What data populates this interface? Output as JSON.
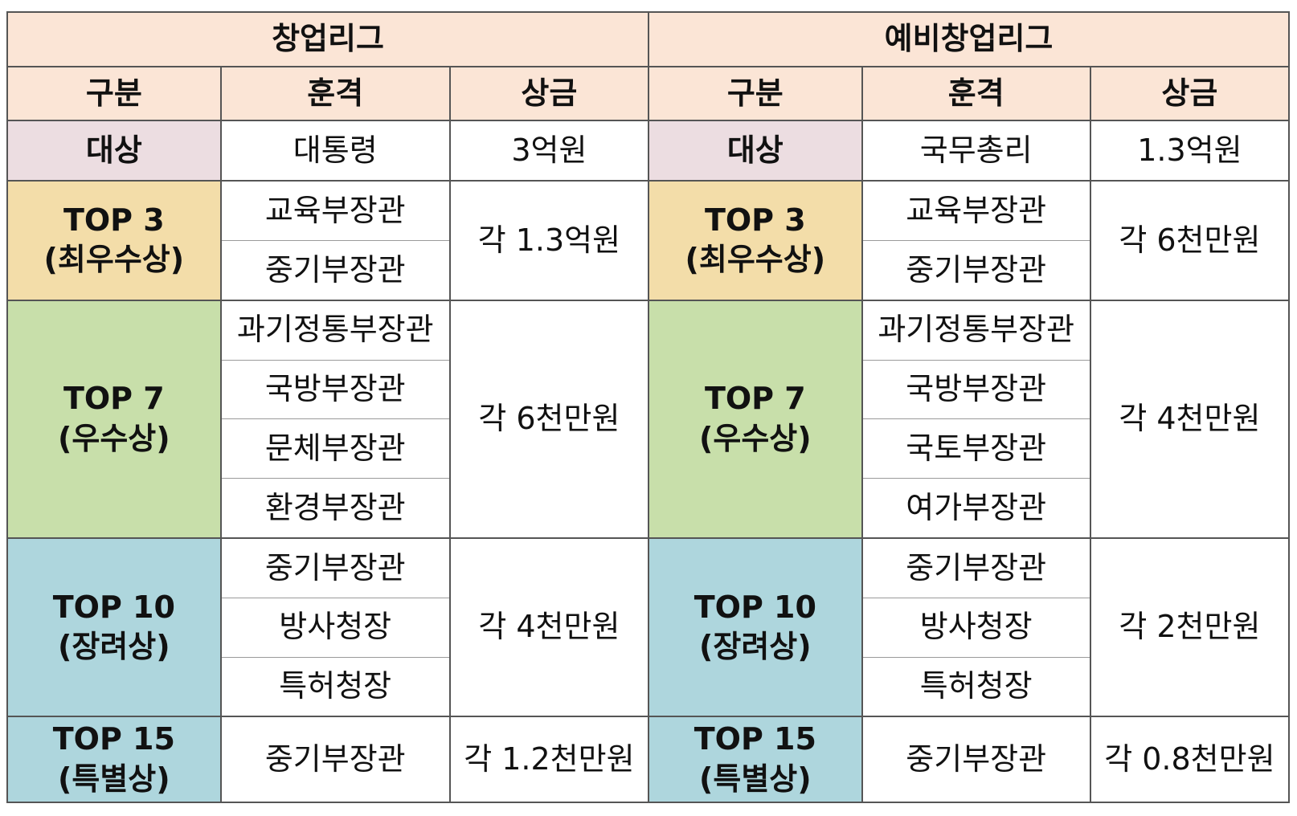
{
  "leagues": [
    {
      "title": "창업리그",
      "headers": [
        "구분",
        "훈격",
        "상금"
      ],
      "grand": {
        "category": "대상",
        "honor": "대통령",
        "prize": "3억원"
      },
      "top3": {
        "category": "TOP 3\n(최우수상)",
        "honors": [
          "교육부장관",
          "중기부장관"
        ],
        "prize": "각 1.3억원"
      },
      "top7": {
        "category": "TOP 7\n(우수상)",
        "honors": [
          "과기정통부장관",
          "국방부장관",
          "문체부장관",
          "환경부장관"
        ],
        "prize": "각 6천만원"
      },
      "top10": {
        "category": "TOP 10\n(장려상)",
        "honors": [
          "중기부장관",
          "방사청장",
          "특허청장"
        ],
        "prize": "각 4천만원"
      },
      "top15": {
        "category": "TOP 15\n(특별상)",
        "honor": "중기부장관",
        "prize": "각 1.2천만원"
      }
    },
    {
      "title": "예비창업리그",
      "headers": [
        "구분",
        "훈격",
        "상금"
      ],
      "grand": {
        "category": "대상",
        "honor": "국무총리",
        "prize": "1.3억원"
      },
      "top3": {
        "category": "TOP 3\n(최우수상)",
        "honors": [
          "교육부장관",
          "중기부장관"
        ],
        "prize": "각 6천만원"
      },
      "top7": {
        "category": "TOP 7\n(우수상)",
        "honors": [
          "과기정통부장관",
          "국방부장관",
          "국토부장관",
          "여가부장관"
        ],
        "prize": "각 4천만원"
      },
      "top10": {
        "category": "TOP 10\n(장려상)",
        "honors": [
          "중기부장관",
          "방사청장",
          "특허청장"
        ],
        "prize": "각 2천만원"
      },
      "top15": {
        "category": "TOP 15\n(특별상)",
        "honor": "중기부장관",
        "prize": "각 0.8천만원"
      }
    }
  ],
  "colors": {
    "header_bg": "#fbe5d6",
    "grand_bg": "#ecdde1",
    "top3_bg": "#f3dda9",
    "top7_bg": "#c8dfaa",
    "top10_bg": "#aed6dd",
    "top15_bg": "#aed6dd"
  }
}
